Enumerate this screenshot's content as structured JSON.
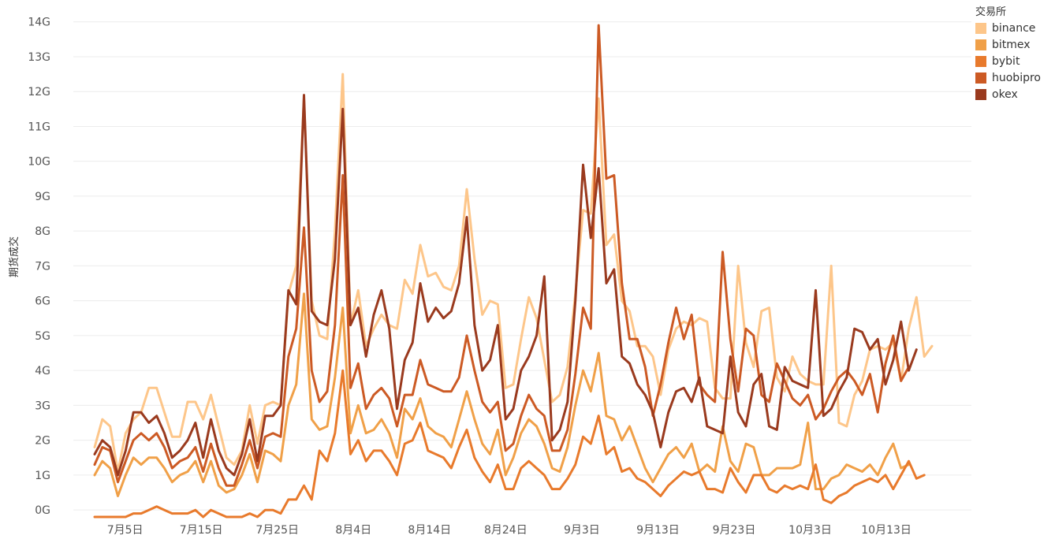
{
  "chart_data": {
    "type": "line",
    "title": "",
    "xlabel": "",
    "ylabel": "期货成交",
    "legend_title": "交易所",
    "legend_position": "top-right",
    "ylim": [
      -0.2,
      14.4
    ],
    "y_ticks": [
      0,
      1,
      2,
      3,
      4,
      5,
      6,
      7,
      8,
      9,
      10,
      11,
      12,
      13,
      14
    ],
    "y_tick_labels": [
      "0G",
      "1G",
      "2G",
      "3G",
      "4G",
      "5G",
      "6G",
      "7G",
      "8G",
      "9G",
      "10G",
      "11G",
      "12G",
      "13G",
      "14G"
    ],
    "x_range": [
      0,
      110
    ],
    "x_ticks": [
      4,
      14,
      24,
      34,
      44,
      54,
      64,
      74,
      84,
      94,
      104
    ],
    "x_tick_labels": [
      "7月5日",
      "7月15日",
      "7月25日",
      "8月4日",
      "8月14日",
      "8月24日",
      "9月3日",
      "9月13日",
      "9月23日",
      "10月3日",
      "10月13日"
    ],
    "grid": true,
    "series": [
      {
        "name": "binance",
        "color": "#fdc68a",
        "values": [
          1.8,
          2.6,
          2.4,
          1.1,
          2.2,
          2.6,
          2.8,
          3.5,
          3.5,
          2.8,
          2.1,
          2.1,
          3.1,
          3.1,
          2.6,
          3.3,
          2.4,
          1.5,
          1.3,
          1.7,
          3.0,
          1.9,
          3.0,
          3.1,
          3.0,
          6.2,
          7.0,
          11.8,
          6.0,
          5.0,
          4.9,
          8.0,
          12.5,
          5.3,
          6.3,
          4.7,
          5.2,
          5.6,
          5.3,
          5.2,
          6.6,
          6.2,
          7.6,
          6.7,
          6.8,
          6.4,
          6.3,
          7.0,
          9.2,
          7.2,
          5.6,
          6.0,
          5.9,
          3.5,
          3.6,
          4.9,
          6.1,
          5.5,
          4.3,
          3.1,
          3.3,
          4.1,
          6.2,
          8.6,
          8.5,
          11.8,
          7.6,
          7.9,
          6.0,
          5.7,
          4.7,
          4.7,
          4.4,
          3.3,
          4.6,
          5.2,
          5.4,
          5.3,
          5.5,
          5.4,
          3.5,
          3.2,
          3.2,
          7.0,
          4.8,
          4.1,
          5.7,
          5.8,
          3.8,
          3.4,
          4.4,
          3.9,
          3.7,
          3.6,
          3.6,
          7.0,
          2.5,
          2.4,
          3.3,
          3.7,
          4.6,
          4.7,
          4.6,
          4.8,
          3.7,
          5.2,
          6.1,
          4.4,
          4.7
        ]
      },
      {
        "name": "bitmex",
        "color": "#f0a048",
        "values": [
          1.0,
          1.4,
          1.2,
          0.4,
          1.0,
          1.5,
          1.3,
          1.5,
          1.5,
          1.2,
          0.8,
          1.0,
          1.1,
          1.4,
          0.8,
          1.4,
          0.7,
          0.5,
          0.6,
          1.0,
          1.6,
          0.8,
          1.7,
          1.6,
          1.4,
          3.0,
          3.6,
          6.2,
          2.6,
          2.3,
          2.4,
          3.8,
          5.8,
          2.2,
          3.0,
          2.2,
          2.3,
          2.6,
          2.2,
          1.5,
          2.9,
          2.6,
          3.2,
          2.4,
          2.2,
          2.1,
          1.8,
          2.6,
          3.4,
          2.6,
          1.9,
          1.6,
          2.3,
          1.0,
          1.5,
          2.2,
          2.6,
          2.4,
          1.9,
          1.2,
          1.1,
          1.8,
          3.0,
          4.0,
          3.4,
          4.5,
          2.7,
          2.6,
          2.0,
          2.4,
          1.8,
          1.2,
          0.8,
          1.2,
          1.6,
          1.8,
          1.5,
          1.9,
          1.1,
          1.3,
          1.1,
          2.4,
          1.4,
          1.1,
          1.9,
          1.8,
          1.0,
          1.0,
          1.2,
          1.2,
          1.2,
          1.3,
          2.5,
          0.6,
          0.6,
          0.9,
          1.0,
          1.3,
          1.2,
          1.1,
          1.3,
          1.0,
          1.5,
          1.9,
          1.2,
          1.3
        ]
      },
      {
        "name": "bybit",
        "color": "#e87a2c",
        "values": [
          -0.2,
          -0.2,
          -0.2,
          -0.2,
          -0.2,
          -0.1,
          -0.1,
          0.0,
          0.1,
          0.0,
          -0.1,
          -0.1,
          -0.1,
          0.0,
          -0.2,
          0.0,
          -0.1,
          -0.2,
          -0.2,
          -0.2,
          -0.1,
          -0.2,
          0.0,
          0.0,
          -0.1,
          0.3,
          0.3,
          0.7,
          0.3,
          1.7,
          1.4,
          2.2,
          4.0,
          1.6,
          2.0,
          1.4,
          1.7,
          1.7,
          1.4,
          1.0,
          1.9,
          2.0,
          2.5,
          1.7,
          1.6,
          1.5,
          1.2,
          1.8,
          2.3,
          1.5,
          1.1,
          0.8,
          1.3,
          0.6,
          0.6,
          1.2,
          1.4,
          1.2,
          1.0,
          0.6,
          0.6,
          0.9,
          1.3,
          2.1,
          1.9,
          2.7,
          1.6,
          1.8,
          1.1,
          1.2,
          0.9,
          0.8,
          0.6,
          0.4,
          0.7,
          0.9,
          1.1,
          1.0,
          1.1,
          0.6,
          0.6,
          0.5,
          1.2,
          0.8,
          0.5,
          1.0,
          1.0,
          0.6,
          0.5,
          0.7,
          0.6,
          0.7,
          0.6,
          1.3,
          0.3,
          0.2,
          0.4,
          0.5,
          0.7,
          0.8,
          0.9,
          0.8,
          1.0,
          0.6,
          1.0,
          1.4,
          0.9,
          1.0
        ]
      },
      {
        "name": "huobipro",
        "color": "#cc5a24",
        "values": [
          1.3,
          1.8,
          1.7,
          0.8,
          1.4,
          2.0,
          2.2,
          2.0,
          2.2,
          1.8,
          1.2,
          1.4,
          1.5,
          1.8,
          1.1,
          1.9,
          1.2,
          0.7,
          0.7,
          1.3,
          2.0,
          1.2,
          2.1,
          2.2,
          2.1,
          4.4,
          5.2,
          8.1,
          4.0,
          3.1,
          3.4,
          5.3,
          9.6,
          3.5,
          4.2,
          2.9,
          3.3,
          3.5,
          3.2,
          2.4,
          3.3,
          3.3,
          4.3,
          3.6,
          3.5,
          3.4,
          3.4,
          3.8,
          5.0,
          4.0,
          3.1,
          2.8,
          3.1,
          1.7,
          1.9,
          2.7,
          3.3,
          2.9,
          2.7,
          1.7,
          1.7,
          2.3,
          3.9,
          5.8,
          5.2,
          13.9,
          9.5,
          9.6,
          6.5,
          4.9,
          4.9,
          4.1,
          2.7,
          3.6,
          4.8,
          5.8,
          4.9,
          5.6,
          3.6,
          3.3,
          3.1,
          7.4,
          4.9,
          3.4,
          5.2,
          5.0,
          3.3,
          3.1,
          4.2,
          3.7,
          3.2,
          3.0,
          3.3,
          2.6,
          2.9,
          3.4,
          3.8,
          4.0,
          3.7,
          3.3,
          3.9,
          2.8,
          4.2,
          5.0,
          3.7,
          4.1
        ]
      },
      {
        "name": "okex",
        "color": "#9a3a1e",
        "values": [
          1.6,
          2.0,
          1.8,
          1.0,
          1.7,
          2.8,
          2.8,
          2.5,
          2.7,
          2.2,
          1.5,
          1.7,
          2.0,
          2.5,
          1.5,
          2.6,
          1.7,
          1.2,
          1.0,
          1.6,
          2.6,
          1.4,
          2.7,
          2.7,
          3.0,
          6.3,
          5.9,
          11.9,
          5.7,
          5.4,
          5.3,
          7.2,
          11.5,
          5.3,
          5.8,
          4.4,
          5.6,
          6.3,
          5.2,
          2.9,
          4.3,
          4.8,
          6.5,
          5.4,
          5.8,
          5.5,
          5.7,
          6.5,
          8.4,
          5.3,
          4.0,
          4.3,
          5.3,
          2.6,
          2.9,
          4.0,
          4.4,
          5.0,
          6.7,
          2.0,
          2.3,
          3.1,
          6.0,
          9.9,
          7.8,
          9.8,
          6.5,
          6.9,
          4.4,
          4.2,
          3.6,
          3.3,
          2.8,
          1.8,
          2.8,
          3.4,
          3.5,
          3.1,
          3.8,
          2.4,
          2.3,
          2.2,
          4.4,
          2.8,
          2.4,
          3.6,
          3.9,
          2.4,
          2.3,
          4.1,
          3.7,
          3.6,
          3.5,
          6.3,
          2.7,
          2.9,
          3.4,
          3.8,
          5.2,
          5.1,
          4.6,
          4.9,
          3.6,
          4.3,
          5.4,
          4.0,
          4.6
        ]
      }
    ]
  }
}
